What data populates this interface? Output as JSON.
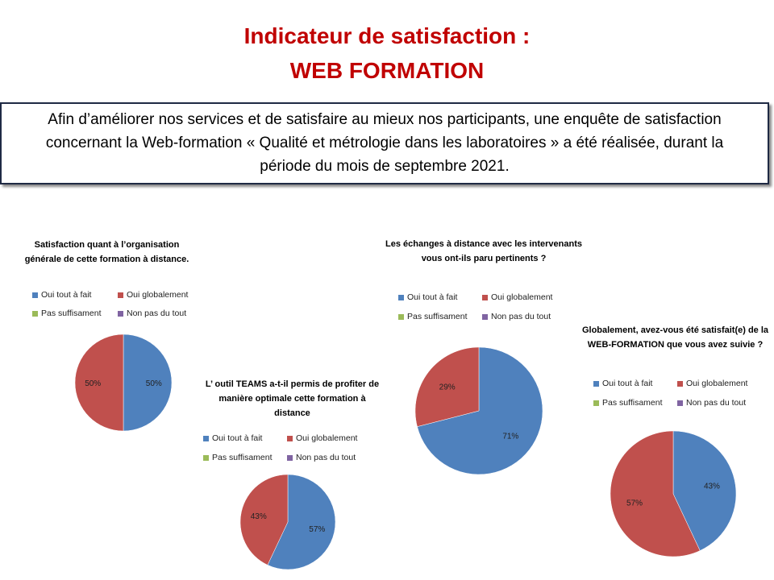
{
  "header": {
    "title_line1": "Indicateur de satisfaction :",
    "title_line2": "WEB FORMATION"
  },
  "intro": {
    "text": "Afin d’améliorer nos services et de satisfaire au mieux nos participants, une enquête de satisfaction concernant la Web-formation « Qualité et métrologie dans les laboratoires » a été réalisée, durant la période du mois de septembre 2021."
  },
  "colors": {
    "oui_tout_a_fait": "#4f81bd",
    "oui_globalement": "#c0504d",
    "pas_suffisament": "#9bbb59",
    "non_pas_du_tout": "#8064a2",
    "title": "#c00000"
  },
  "legend_labels": [
    "Oui tout à fait",
    "Oui globalement",
    "Pas suffisament",
    "Non pas du tout"
  ],
  "chart_data": [
    {
      "type": "pie",
      "title": "Satisfaction quant à l’organisation générale de cette formation à distance.",
      "categories": [
        "Oui tout à fait",
        "Oui globalement",
        "Pas suffisament",
        "Non pas du tout"
      ],
      "values": [
        50,
        50,
        0,
        0
      ],
      "labels": [
        "50%",
        "50%",
        "",
        ""
      ],
      "legend": "top"
    },
    {
      "type": "pie",
      "title": "L’ outil TEAMS a-t-il permis de profiter de manière optimale cette formation à distance",
      "categories": [
        "Oui tout à fait",
        "Oui globalement",
        "Pas suffisament",
        "Non pas du tout"
      ],
      "values": [
        57,
        43,
        0,
        0
      ],
      "labels": [
        "57%",
        "43%",
        "",
        ""
      ],
      "legend": "top"
    },
    {
      "type": "pie",
      "title": "Les échanges à distance avec les intervenants vous ont-ils paru pertinents ?",
      "categories": [
        "Oui tout à fait",
        "Oui globalement",
        "Pas suffisament",
        "Non pas du tout"
      ],
      "values": [
        71,
        29,
        0,
        0
      ],
      "labels": [
        "71%",
        "29%",
        "",
        ""
      ],
      "legend": "top"
    },
    {
      "type": "pie",
      "title": "Globalement, avez-vous été satisfait(e) de la WEB-FORMATION que vous avez suivie ?",
      "categories": [
        "Oui tout à fait",
        "Oui globalement",
        "Pas suffisament",
        "Non pas du tout"
      ],
      "values": [
        43,
        57,
        0,
        0
      ],
      "labels": [
        "43%",
        "57%",
        "",
        ""
      ],
      "legend": "top"
    }
  ]
}
